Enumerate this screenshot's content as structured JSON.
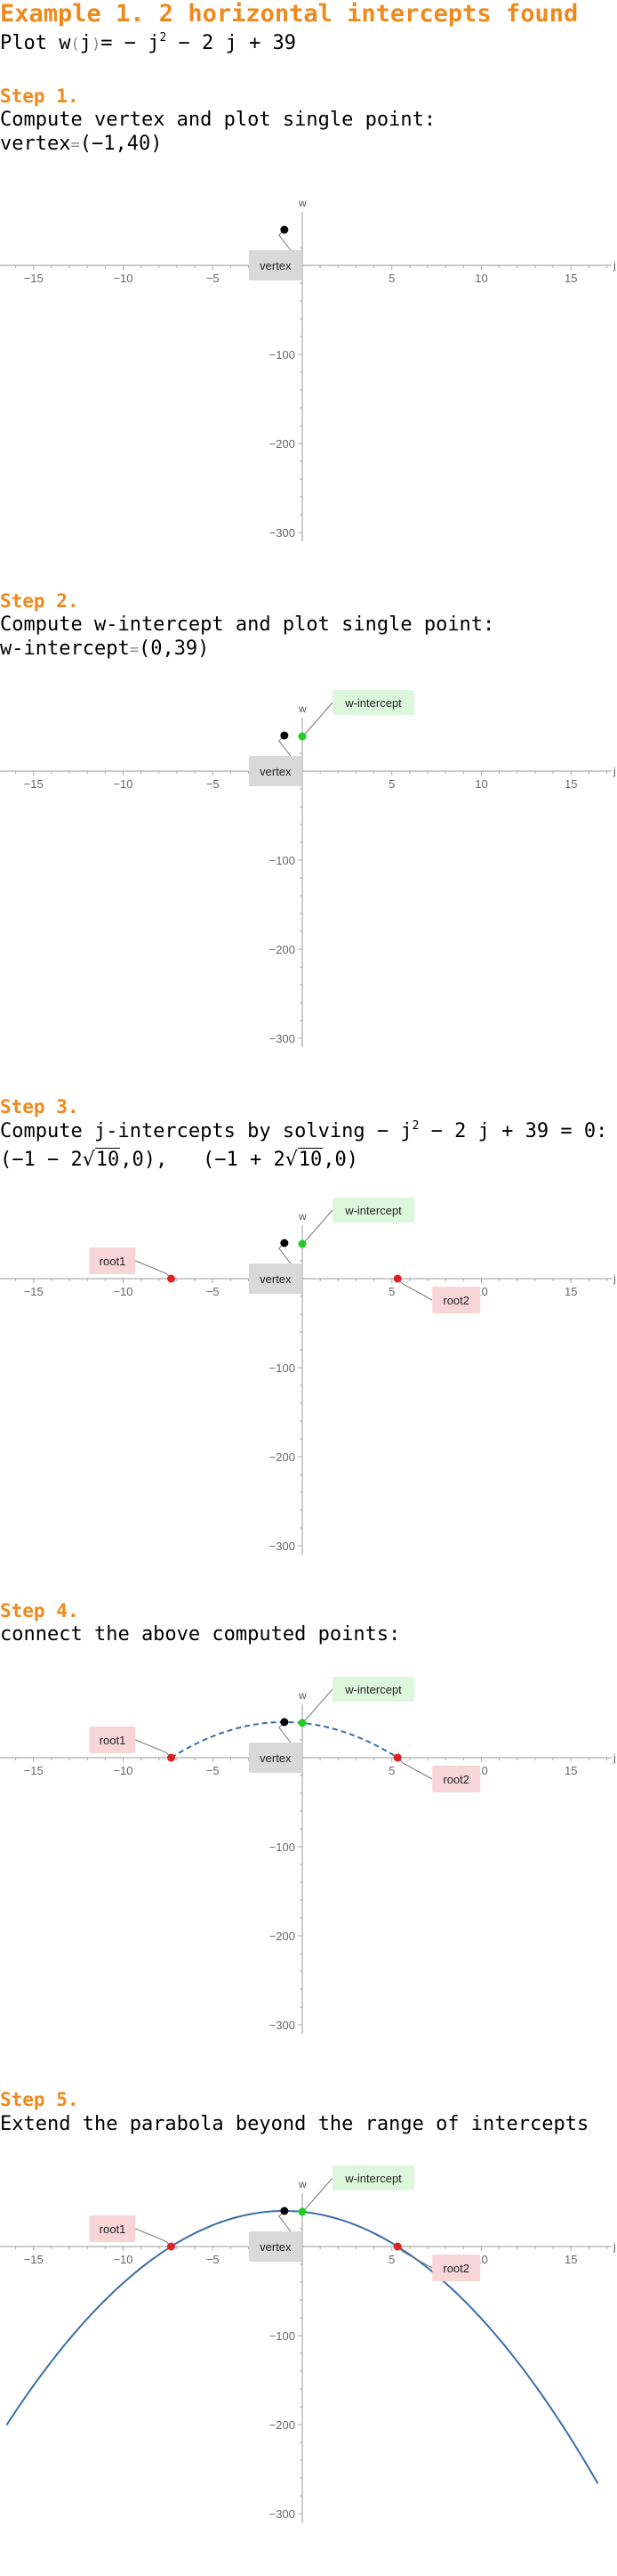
{
  "header": {
    "title": "Example 1. 2 horizontal intercepts found",
    "plot_prefix": "Plot ",
    "func_name": "w",
    "func_var": "j",
    "func_rhs_a": "= − j",
    "func_exp": "2",
    "func_rhs_b": " − 2 j + 39"
  },
  "steps": [
    {
      "heading": "Step 1.",
      "line1": "Compute vertex and plot single point:",
      "line2_label": "vertex",
      "line2_value": "(−1,40)"
    },
    {
      "heading": "Step 2.",
      "line1": "Compute w-intercept and plot single point:",
      "line2_label": "w-intercept",
      "line2_value": "(0,39)"
    },
    {
      "heading": "Step 3.",
      "line1_a": "Compute j-intercepts by solving ",
      "line1_b": "− j",
      "line1_exp": "2",
      "line1_c": " − 2 j + 39 = 0:",
      "root1_text_a": "(−1 − 2",
      "root1_rad": "10",
      "root1_text_b": ",0),",
      "root2_text_a": "(−1 + 2",
      "root2_rad": "10",
      "root2_text_b": ",0)"
    },
    {
      "heading": "Step 4.",
      "line1": "connect the above computed points:"
    },
    {
      "heading": "Step 5.",
      "line1": "Extend the parabola beyond the range of intercepts"
    }
  ],
  "chart_data": [
    {
      "type": "scatter",
      "xlabel": "j",
      "ylabel": "w",
      "xlim": [
        -17,
        17
      ],
      "ylim": [
        -310,
        40
      ],
      "xticks": [
        -15,
        -10,
        -5,
        5,
        10,
        15
      ],
      "yticks": [
        -100,
        -200,
        -300
      ],
      "points": [
        {
          "name": "vertex",
          "x": -1,
          "y": 40,
          "color": "#000000"
        }
      ],
      "curve": "none"
    },
    {
      "type": "scatter",
      "xlabel": "j",
      "ylabel": "w",
      "xlim": [
        -17,
        17
      ],
      "ylim": [
        -310,
        40
      ],
      "xticks": [
        -15,
        -10,
        -5,
        5,
        10,
        15
      ],
      "yticks": [
        -100,
        -200,
        -300
      ],
      "points": [
        {
          "name": "vertex",
          "x": -1,
          "y": 40,
          "color": "#000000"
        },
        {
          "name": "w-intercept",
          "x": 0,
          "y": 39,
          "color": "#22cc22"
        }
      ],
      "curve": "none"
    },
    {
      "type": "scatter",
      "xlabel": "j",
      "ylabel": "w",
      "xlim": [
        -17,
        17
      ],
      "ylim": [
        -310,
        40
      ],
      "xticks": [
        -15,
        -10,
        -5,
        5,
        10,
        15
      ],
      "yticks": [
        -100,
        -200,
        -300
      ],
      "points": [
        {
          "name": "vertex",
          "x": -1,
          "y": 40,
          "color": "#000000"
        },
        {
          "name": "w-intercept",
          "x": 0,
          "y": 39,
          "color": "#22cc22"
        },
        {
          "name": "root1",
          "x": -7.32,
          "y": 0,
          "color": "#dd2222"
        },
        {
          "name": "root2",
          "x": 5.32,
          "y": 0,
          "color": "#dd2222"
        }
      ],
      "curve": "none"
    },
    {
      "type": "line",
      "xlabel": "j",
      "ylabel": "w",
      "xlim": [
        -17,
        17
      ],
      "ylim": [
        -310,
        40
      ],
      "xticks": [
        -15,
        -10,
        -5,
        5,
        10,
        15
      ],
      "yticks": [
        -100,
        -200,
        -300
      ],
      "points": [
        {
          "name": "vertex",
          "x": -1,
          "y": 40,
          "color": "#000000"
        },
        {
          "name": "w-intercept",
          "x": 0,
          "y": 39,
          "color": "#22cc22"
        },
        {
          "name": "root1",
          "x": -7.32,
          "y": 0,
          "color": "#dd2222"
        },
        {
          "name": "root2",
          "x": 5.32,
          "y": 0,
          "color": "#dd2222"
        }
      ],
      "curve": "dashed",
      "curve_range": [
        -7.32,
        5.32
      ],
      "curve_color": "#3a6ea8"
    },
    {
      "type": "line",
      "xlabel": "j",
      "ylabel": "w",
      "xlim": [
        -17,
        17
      ],
      "ylim": [
        -310,
        40
      ],
      "xticks": [
        -15,
        -10,
        -5,
        5,
        10,
        15
      ],
      "yticks": [
        -100,
        -200,
        -300
      ],
      "points": [
        {
          "name": "vertex",
          "x": -1,
          "y": 40,
          "color": "#000000"
        },
        {
          "name": "w-intercept",
          "x": 0,
          "y": 39,
          "color": "#22cc22"
        },
        {
          "name": "root1",
          "x": -7.32,
          "y": 0,
          "color": "#dd2222"
        },
        {
          "name": "root2",
          "x": 5.32,
          "y": 0,
          "color": "#dd2222"
        }
      ],
      "curve": "solid",
      "curve_range": [
        -16.5,
        16.5
      ],
      "curve_color": "#3a6ea8"
    }
  ]
}
